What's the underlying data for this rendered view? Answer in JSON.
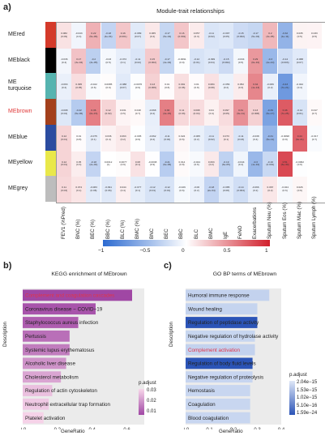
{
  "panel_a": {
    "letter": "a)",
    "title": "Module-trait relationships",
    "modules": [
      {
        "name": "MEred",
        "color": "#d43a2a",
        "label_color": "#222"
      },
      {
        "name": "MEblack",
        "color": "#000000",
        "label_color": "#222"
      },
      {
        "name": "ME\nturquoise",
        "color": "#56b4b0",
        "label_color": "#222"
      },
      {
        "name": "MEbrown",
        "color": "#a3401c",
        "label_color": "#e03a3a"
      },
      {
        "name": "MEblue",
        "color": "#2b4ca0",
        "label_color": "#222"
      },
      {
        "name": "MEyellow",
        "color": "#e9e84a",
        "label_color": "#222"
      },
      {
        "name": "MEgrey",
        "color": "#bdbdbd",
        "label_color": "#222"
      }
    ],
    "traits": [
      "FEV1 (%Pred)",
      "BNC (%)",
      "BEC (%)",
      "BBC (%)",
      "BLC (%)",
      "BMC (%)",
      "BNC",
      "BEC",
      "BBC",
      "BLC",
      "BMC",
      "IgE",
      "FeNO",
      "Exacerbations",
      "Sputum Neu (%)",
      "Sputum Eos (%)",
      "Sputum Mac (%)",
      "Sputum Lymph (%)"
    ],
    "cells": [
      [
        [
          "0.082",
          "(0.09)"
        ],
        [
          "-0.043",
          "(0.3)"
        ],
        [
          "0.22",
          "(5e-06)"
        ],
        [
          "-0.18",
          "(4e-04)"
        ],
        [
          "0.16",
          "(0.001)"
        ],
        [
          "-0.089",
          "(0.07)"
        ],
        [
          "0.065",
          "(0.2)"
        ],
        [
          "-0.17",
          "(5e-04)"
        ],
        [
          "0.16",
          "(0.001)"
        ],
        [
          "0.057",
          "(0.3)"
        ],
        [
          "-0.11",
          "(0.02)"
        ],
        [
          "-0.097",
          "(0.05)"
        ],
        [
          "-0.15",
          "(0.002)"
        ],
        [
          "-0.17",
          "(5e-04)"
        ],
        [
          "0.2",
          "(3e-05)"
        ],
        [
          "-0.32",
          "(1e-11)"
        ],
        [
          "0.035",
          "(0.5)"
        ],
        [
          "0.033",
          "(0.5)"
        ]
      ],
      [
        [
          "-0.036",
          "(0.4)"
        ],
        [
          "0.17",
          "(3e-04)"
        ],
        [
          "-0.2",
          "(3e-05)"
        ],
        [
          "-0.03",
          "(0.5)"
        ],
        [
          "-0.072",
          "(0.1)"
        ],
        [
          "-0.11",
          "(0.02)"
        ],
        [
          "0.15",
          "(0.002)"
        ],
        [
          "-0.17",
          "(4e-04)"
        ],
        [
          "-0.0091",
          "(0.9)"
        ],
        [
          "-0.12",
          "(0.01)"
        ],
        [
          "-0.099",
          "(0.04)"
        ],
        [
          "-0.15",
          "(0.002)"
        ],
        [
          "-0.034",
          "(0.5)"
        ],
        [
          "0.29",
          "(6e-10)"
        ],
        [
          "-0.3",
          "(4e-10)"
        ],
        [
          "-0.14",
          "(0.003)"
        ],
        [
          "-0.088",
          "(0.07)"
        ],
        [
          " ",
          " "
        ]
      ],
      [
        [
          "-0.063",
          "(0.2)"
        ],
        [
          "0.095",
          "(0.05)"
        ],
        [
          "-0.022",
          "(0.6)"
        ],
        [
          "0.0085",
          "(0.9)"
        ],
        [
          "-0.088",
          "(0.07)"
        ],
        [
          "-0.0076",
          "(0.9)"
        ],
        [
          "0.13",
          "(0.006)"
        ],
        [
          "0.01",
          "(0.8)"
        ],
        [
          "0.091",
          "(0.06)"
        ],
        [
          "0.01",
          "(0.8)"
        ],
        [
          "0.084",
          "(0.08)"
        ],
        [
          "-0.056",
          "(0.2)"
        ],
        [
          "0.052",
          "(0.3)"
        ],
        [
          "0.34",
          "(1e-13)"
        ],
        [
          "-0.066",
          "(0.2)"
        ],
        [
          "-0.43",
          "(7e-21)"
        ],
        [
          "-0.042",
          "(0.4)"
        ],
        [
          " ",
          " "
        ]
      ],
      [
        [
          "-0.098",
          "(0.04)"
        ],
        [
          "-0.22",
          "(5e-06)"
        ],
        [
          "0.36",
          "(6e-15)"
        ],
        [
          "0.12",
          "(0.02)"
        ],
        [
          "0.031",
          "(0.5)"
        ],
        [
          "0.018",
          "(0.7)"
        ],
        [
          "-0.068",
          "(0.2)"
        ],
        [
          "0.36",
          "(4e-15)"
        ],
        [
          "0.11",
          "(0.03)"
        ],
        [
          "0.098",
          "(0.04)"
        ],
        [
          "0.04",
          "(0.4)"
        ],
        [
          "0.097",
          "(0.05)"
        ],
        [
          "0.31",
          "(9e-11)"
        ],
        [
          "0.13",
          "(0.008)"
        ],
        [
          "-0.39",
          "(5e-17)"
        ],
        [
          "0.46",
          "(7e-25)"
        ],
        [
          "-0.12",
          "(0.01)"
        ],
        [
          "0.017",
          "(0.7)"
        ]
      ],
      [
        [
          "0.12",
          "(0.01)"
        ],
        [
          "0.01",
          "(0.8)"
        ],
        [
          "-0.075",
          "(0.1)"
        ],
        [
          "0.036",
          "(0.4)"
        ],
        [
          "0.063",
          "(0.2)"
        ],
        [
          "-0.005",
          "(0.9)"
        ],
        [
          "-0.062",
          "(0.2)"
        ],
        [
          "-0.11",
          "(0.02)"
        ],
        [
          "0.024",
          "(0.6)"
        ],
        [
          "-0.065",
          "(0.2)"
        ],
        [
          "-0.11",
          "(0.02)"
        ],
        [
          "0.073",
          "(0.1)"
        ],
        [
          "-0.11",
          "(0.03)"
        ],
        [
          "-0.038",
          "(0.4)"
        ],
        [
          "-0.31",
          "(5e-11)"
        ],
        [
          "-0.0098",
          "(0.8)"
        ],
        [
          "0.44",
          "(3e-21)"
        ],
        [
          "-0.017",
          "(0.7)"
        ]
      ],
      [
        [
          "0.12",
          "(0.01)"
        ],
        [
          "0.05",
          "(0.3)"
        ],
        [
          "-0.18",
          "(2e-04)"
        ],
        [
          "0.0012",
          "(1)"
        ],
        [
          "0.0077",
          "(0.9)"
        ],
        [
          "0.08",
          "(0.1)"
        ],
        [
          "-0.0038",
          "(0.9)"
        ],
        [
          "-0.21",
          "(6e-06)"
        ],
        [
          "0.014",
          "(0.8)"
        ],
        [
          "-0.024",
          "(0.6)"
        ],
        [
          "0.063",
          "(0.2)"
        ],
        [
          "-0.19",
          "(6e-05)"
        ],
        [
          "-0.044",
          "(0.4)"
        ],
        [
          "-0.3",
          "(1e-10)"
        ],
        [
          "-0.16",
          "(0.001)"
        ],
        [
          "0.51",
          "(6e-30)"
        ],
        [
          "-0.0062",
          "(0.9)"
        ],
        [
          " ",
          " "
        ]
      ],
      [
        [
          "0.11",
          "(0.03)"
        ],
        [
          "0.074",
          "(0.1)"
        ],
        [
          "-0.083",
          "(0.08)"
        ],
        [
          "-0.091",
          "(0.06)"
        ],
        [
          "0.044",
          "(0.4)"
        ],
        [
          "-0.077",
          "(0.1)"
        ],
        [
          "-0.12",
          "(0.01)"
        ],
        [
          "-0.12",
          "(0.01)"
        ],
        [
          "-0.026",
          "(0.6)"
        ],
        [
          "-0.06",
          "(0.2)"
        ],
        [
          "-0.18",
          "(2e-04)"
        ],
        [
          "-0.085",
          "(0.08)"
        ],
        [
          "-0.14",
          "(0.004)"
        ],
        [
          "-0.066",
          "(0.2)"
        ],
        [
          "0.067",
          "(0.2)"
        ],
        [
          "-0.024",
          "(0.6)"
        ],
        [
          "0.026",
          "(0.6)"
        ],
        [
          " ",
          " "
        ]
      ]
    ],
    "colorbar": {
      "ticks": [
        "−1",
        "−0.5",
        "0",
        "0.5",
        "1"
      ],
      "low_color": "#2d6bd1",
      "high_color": "#d1202c"
    }
  },
  "panel_b": {
    "letter": "b)",
    "title": "KEGG enrichment of MEbrown",
    "y_title": "Description",
    "x_title": "GeneRatio",
    "legend_title": "p.adjust",
    "legend_ticks": [
      "0.03",
      "0.02",
      "0.01"
    ]
  },
  "panel_c": {
    "letter": "c)",
    "title": "GO BP terms of MEbrown",
    "y_title": "Description",
    "x_title": "GeneRatio",
    "legend_title": "p.adjust",
    "legend_ticks": [
      "2.04e−15",
      "1.53e−15",
      "1.02e−15",
      "5.10e−16",
      "1.59e−24"
    ]
  },
  "chart_data": [
    {
      "type": "heatmap",
      "title": "Module-trait relationships",
      "rows": [
        "MEred",
        "MEblack",
        "ME turquoise",
        "MEbrown",
        "MEblue",
        "MEyellow",
        "MEgrey"
      ],
      "columns": [
        "FEV1 (%Pred)",
        "BNC (%)",
        "BEC (%)",
        "BBC (%)",
        "BLC (%)",
        "BMC (%)",
        "BNC",
        "BEC",
        "BBC",
        "BLC",
        "BMC",
        "IgE",
        "FeNO",
        "Exacerbations",
        "Sputum Neu (%)",
        "Sputum Eos (%)",
        "Sputum Mac (%)",
        "Sputum Lymph (%)"
      ],
      "values": [
        [
          0.082,
          -0.043,
          0.22,
          -0.18,
          0.16,
          -0.089,
          0.065,
          -0.17,
          0.16,
          0.057,
          -0.11,
          -0.097,
          -0.15,
          -0.17,
          0.2,
          -0.32,
          0.035,
          0.033
        ],
        [
          -0.036,
          0.17,
          -0.2,
          -0.03,
          -0.072,
          -0.11,
          0.15,
          -0.17,
          -0.0091,
          -0.12,
          -0.099,
          -0.15,
          -0.034,
          0.29,
          -0.3,
          -0.14,
          -0.088,
          0
        ],
        [
          -0.063,
          0.095,
          -0.022,
          0.0085,
          -0.088,
          -0.0076,
          0.13,
          0.01,
          0.091,
          0.01,
          0.084,
          -0.056,
          0.052,
          0.34,
          -0.066,
          -0.43,
          -0.042,
          0
        ],
        [
          -0.098,
          -0.22,
          0.36,
          0.12,
          0.031,
          0.018,
          -0.068,
          0.36,
          0.11,
          0.098,
          0.04,
          0.097,
          0.31,
          0.13,
          -0.39,
          0.46,
          -0.12,
          0.017
        ],
        [
          0.12,
          0.01,
          -0.075,
          0.036,
          0.063,
          -0.005,
          -0.062,
          -0.11,
          0.024,
          -0.065,
          -0.11,
          0.073,
          -0.11,
          -0.038,
          -0.31,
          -0.0098,
          0.44,
          -0.017
        ],
        [
          0.12,
          0.05,
          -0.18,
          0.0012,
          0.0077,
          0.08,
          -0.0038,
          -0.21,
          0.014,
          -0.024,
          0.063,
          -0.19,
          -0.044,
          -0.3,
          -0.16,
          0.51,
          -0.0062,
          0
        ],
        [
          0.11,
          0.074,
          -0.083,
          -0.091,
          0.044,
          -0.077,
          -0.12,
          -0.12,
          -0.026,
          -0.06,
          -0.18,
          -0.085,
          -0.14,
          -0.066,
          0.067,
          -0.024,
          0.026,
          0
        ]
      ],
      "colorbar_range": [
        -1,
        1
      ]
    },
    {
      "type": "bar",
      "title": "KEGG enrichment of MEbrown",
      "xlabel": "GeneRatio",
      "ylabel": "Description",
      "orientation": "horizontal",
      "categories": [
        "Complement and coagulation cascades",
        "Coronavirus disease − COVID−19",
        "Staphylococcus aureus infection",
        "Pertussis",
        "Systemic lupus erythematosus",
        "Alcoholic liver disease",
        "Cholesterol metabolism",
        "Regulation of actin cytoskeleton",
        "Neutrophil extracellular trap formation",
        "Platelet activation"
      ],
      "highlight": "Complement and coagulation cascades",
      "values": [
        0.63,
        0.42,
        0.32,
        0.27,
        0.27,
        0.25,
        0.22,
        0.17,
        0.15,
        0.12
      ],
      "p_adjust": [
        0.003,
        0.006,
        0.008,
        0.012,
        0.015,
        0.02,
        0.024,
        0.03,
        0.032,
        0.034
      ],
      "x_ticks": [
        "0.0",
        "0.2",
        "0.4",
        "0.6"
      ],
      "xlim": [
        0,
        0.7
      ]
    },
    {
      "type": "bar",
      "title": "GO BP terms of MEbrown",
      "xlabel": "GeneRatio",
      "ylabel": "Description",
      "orientation": "horizontal",
      "categories": [
        "Humoral immune response",
        "Wound healing",
        "Regulation of peptidase activity",
        "Negative regulation of hydrolase activity",
        "Complement activation",
        "Regulation of body fluid levels",
        "Negative regulation of proteolysis",
        "Hemostasis",
        "Coagulation",
        "Blood coagulation"
      ],
      "highlight": "Complement activation",
      "values": [
        0.35,
        0.3,
        0.3,
        0.29,
        0.29,
        0.28,
        0.28,
        0.27,
        0.27,
        0.27
      ],
      "p_adjust": [
        1.02e-15,
        1.4e-15,
        1.59e-24,
        1.9e-15,
        1.02e-15,
        1.59e-24,
        1.8e-15,
        2.04e-15,
        2.04e-15,
        2.04e-15
      ],
      "x_ticks": [
        "0.0",
        "0.1",
        "0.2",
        "0.3",
        "0.4"
      ],
      "xlim": [
        0,
        0.4
      ]
    }
  ]
}
